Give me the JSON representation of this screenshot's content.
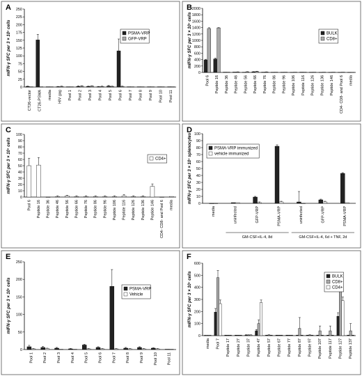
{
  "chart_data": [
    {
      "panel": "A",
      "type": "bar",
      "ylabel": "mIFN-γ SFC per 3 × 10⁵ cells",
      "ylim": [
        0,
        250
      ],
      "yticks": [
        0,
        25,
        50,
        75,
        100,
        125,
        150,
        175,
        200,
        225,
        250
      ],
      "categories": [
        "CT26-vector",
        "CT26-PSMA",
        "media",
        "HIV gag",
        "Pool 1",
        "Pool 2",
        "Pool 3",
        "Pool 4",
        "Pool 5",
        "Pool 6",
        "Pool 7",
        "Pool 8",
        "Pool 9",
        "Pool 10",
        "Pool 11"
      ],
      "legend_position": "top-right",
      "series": [
        {
          "name": "PSMA-VRP",
          "color": "#222222",
          "values": [
            2,
            151,
            1,
            1,
            1,
            2,
            2,
            1,
            3,
            116,
            1,
            1,
            1,
            1,
            1
          ],
          "errors": [
            1,
            18,
            0,
            1,
            0,
            2,
            1,
            1,
            2,
            38,
            0,
            0,
            0,
            0,
            0
          ]
        },
        {
          "name": "GFP-VRP",
          "color": "#aaaaaa",
          "values": [
            1,
            1,
            1,
            2,
            1,
            3,
            3,
            2,
            2,
            2,
            1,
            1,
            1,
            1,
            1
          ],
          "errors": [
            0,
            0,
            0,
            1,
            0,
            1,
            1,
            1,
            1,
            1,
            0,
            0,
            0,
            0,
            0
          ]
        }
      ]
    },
    {
      "panel": "B",
      "type": "bar",
      "ylabel": "mIFN-γ SFC per 3 × 10⁴ cells",
      "ylim": [
        0,
        2000
      ],
      "yticks": [
        0,
        200,
        400,
        600,
        800,
        1000,
        1200,
        1400,
        1600,
        1800,
        2000
      ],
      "categories": [
        "Pool 6",
        "Peptide 16",
        "Peptide 36",
        "Peptide 46",
        "Peptide 56",
        "Peptide 66",
        "Peptide 76",
        "Peptide 86",
        "Peptide 96",
        "Peptide 106",
        "Peptide 116",
        "Peptide 126",
        "Peptide 136",
        "Peptide 146",
        "CD4- CD8- and Pool 6",
        "media"
      ],
      "legend_position": "top-right",
      "series": [
        {
          "name": "BULK",
          "color": "#222222",
          "values": [
            390,
            420,
            10,
            12,
            8,
            20,
            10,
            8,
            8,
            6,
            10,
            8,
            6,
            6,
            6,
            4
          ],
          "errors": [
            20,
            30,
            0,
            0,
            0,
            5,
            0,
            0,
            0,
            0,
            0,
            0,
            0,
            0,
            0,
            0
          ]
        },
        {
          "name": "CD8+",
          "color": "#aaaaaa",
          "values": [
            1370,
            1390,
            10,
            15,
            20,
            30,
            15,
            10,
            10,
            10,
            10,
            10,
            10,
            10,
            10,
            6
          ],
          "errors": [
            25,
            10,
            0,
            5,
            5,
            8,
            5,
            0,
            0,
            0,
            0,
            0,
            0,
            0,
            0,
            0
          ]
        }
      ]
    },
    {
      "panel": "C",
      "type": "bar",
      "ylabel": "mIFN-γ SFC per 3 × 10⁴ cells",
      "ylim": [
        0,
        100
      ],
      "yticks": [
        0,
        10,
        20,
        30,
        40,
        50,
        60,
        70,
        80,
        90,
        100
      ],
      "categories": [
        "Pool 6",
        "Peptide 16",
        "Peptide 36",
        "Peptide 46",
        "Peptide 56",
        "Peptide 66",
        "Peptide 76",
        "Peptide 86",
        "Peptide 96",
        "Peptide 106",
        "Peptide 116",
        "Peptide 126",
        "Peptide 136",
        "Peptide 146",
        "CD4- CD8- and Pool 6",
        "media"
      ],
      "legend_position": "top-right",
      "series": [
        {
          "name": "CD4+",
          "color": "#ffffff",
          "values": [
            50,
            51,
            0,
            1,
            2,
            1,
            1,
            1,
            1,
            1,
            2,
            1,
            1,
            17,
            0,
            1
          ],
          "errors": [
            12,
            12,
            0,
            1,
            1,
            1,
            1,
            1,
            1,
            1,
            2,
            1,
            1,
            4,
            0,
            0
          ]
        }
      ]
    },
    {
      "panel": "D",
      "type": "bar",
      "ylabel": "mIFN-γ SFC per 3 × 10⁴ splenocytes",
      "ylim": [
        0,
        100
      ],
      "yticks": [
        0,
        10,
        20,
        30,
        40,
        50,
        60,
        70,
        80,
        90,
        100
      ],
      "categories": [
        "media",
        "uninfected",
        "GFP-VRP",
        "PSMA-VRP",
        "uninfected",
        "GFP-VRP",
        "PSMA-VRP"
      ],
      "groups": [
        {
          "label": "GM-CSF+IL-4, 8d",
          "from": 1,
          "to": 3
        },
        {
          "label": "GM-CSF+IL-4, 6d + TNF, 2d",
          "from": 4,
          "to": 6
        }
      ],
      "legend_position": "top-left",
      "series": [
        {
          "name": "PSMA-VRP immunized",
          "color": "#222222",
          "values": [
            0,
            1,
            9,
            82,
            2,
            5,
            43
          ],
          "errors": [
            0,
            0,
            1,
            2,
            15,
            1,
            1
          ]
        },
        {
          "name": "vehicle immunized",
          "color": "#ffffff",
          "values": [
            0,
            1,
            1,
            2,
            0,
            2,
            1
          ],
          "errors": [
            0,
            0,
            1,
            1,
            0,
            1,
            0
          ]
        }
      ]
    },
    {
      "panel": "E",
      "type": "bar",
      "ylabel": "mIFN-γ SFC per 3 × 10⁵ cells",
      "ylim": [
        0,
        250
      ],
      "yticks": [
        0,
        50,
        100,
        150,
        200,
        250
      ],
      "categories": [
        "Pool 1",
        "Pool 2",
        "Pool 3",
        "Pool 4",
        "Pool 5",
        "Pool 6",
        "Pool 7",
        "Pool 8",
        "Pool 9",
        "Pool 10",
        "Pool 11"
      ],
      "legend_position": "top-right",
      "series": [
        {
          "name": "PSMA-VRP",
          "color": "#222222",
          "values": [
            8,
            6,
            4,
            2,
            13,
            6,
            180,
            4,
            6,
            4,
            1
          ],
          "errors": [
            4,
            3,
            2,
            1,
            2,
            2,
            48,
            2,
            2,
            1,
            0
          ]
        },
        {
          "name": "Vehicle",
          "color": "#ffffff",
          "values": [
            2,
            3,
            1,
            1,
            2,
            2,
            2,
            2,
            2,
            2,
            1
          ],
          "errors": [
            1,
            1,
            0,
            0,
            1,
            1,
            1,
            1,
            1,
            1,
            0
          ]
        }
      ]
    },
    {
      "panel": "F",
      "type": "bar",
      "ylabel": "mIFN-γ SFC per 3 × 10⁴ cells",
      "ylim": [
        0,
        600
      ],
      "yticks": [
        0,
        100,
        200,
        300,
        400,
        500,
        600
      ],
      "categories": [
        "media",
        "Pool 7",
        "Peptide 17",
        "Peptide 27",
        "Peptide 37",
        "Peptide 47",
        "Peptide 57",
        "Peptide 67",
        "Peptide 77",
        "Peptide 87",
        "Peptide 97",
        "Peptide 107",
        "Peptide 117",
        "Peptide 127",
        "Peptide 137"
      ],
      "legend_position": "top-right",
      "series": [
        {
          "name": "BULK",
          "color": "#222222",
          "values": [
            2,
            195,
            3,
            3,
            5,
            40,
            3,
            3,
            3,
            3,
            3,
            3,
            3,
            160,
            3
          ],
          "errors": [
            1,
            30,
            1,
            1,
            2,
            10,
            1,
            1,
            1,
            1,
            1,
            1,
            1,
            30,
            1
          ]
        },
        {
          "name": "CD8+",
          "color": "#aaaaaa",
          "values": [
            2,
            480,
            3,
            3,
            5,
            100,
            5,
            3,
            3,
            60,
            5,
            40,
            40,
            420,
            40
          ],
          "errors": [
            1,
            60,
            1,
            1,
            2,
            30,
            2,
            1,
            1,
            90,
            2,
            40,
            40,
            30,
            60
          ]
        },
        {
          "name": "CD4+",
          "color": "#ffffff",
          "values": [
            2,
            265,
            3,
            3,
            5,
            275,
            3,
            3,
            3,
            3,
            3,
            3,
            3,
            290,
            3
          ],
          "errors": [
            1,
            30,
            1,
            1,
            2,
            20,
            1,
            1,
            1,
            1,
            1,
            1,
            1,
            30,
            1
          ]
        }
      ]
    }
  ]
}
